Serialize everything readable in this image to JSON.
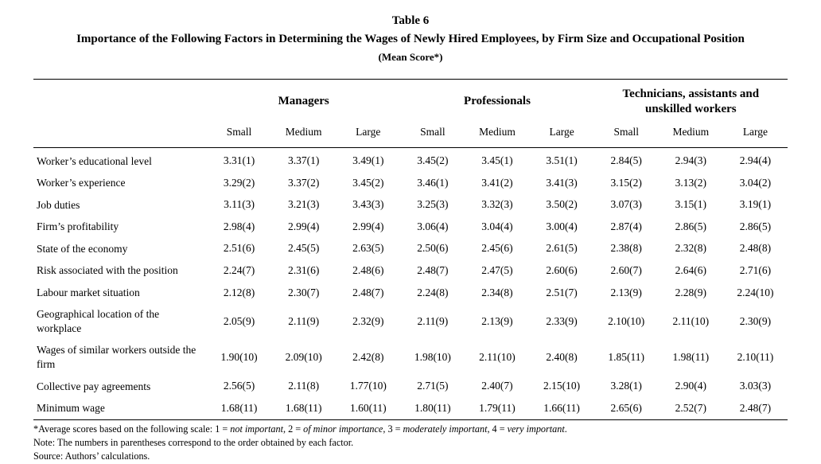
{
  "header": {
    "table_number": "Table 6",
    "title": "Importance of the Following Factors in Determining the Wages of Newly Hired Employees, by Firm Size and Occupational Position",
    "score_note": "(Mean Score*)"
  },
  "table": {
    "group_headers": [
      "Managers",
      "Professionals",
      "Technicians, assistants and unskilled workers"
    ],
    "size_headers": [
      "Small",
      "Medium",
      "Large",
      "Small",
      "Medium",
      "Large",
      "Small",
      "Medium",
      "Large"
    ],
    "rows": [
      {
        "label": "Worker’s educational level",
        "values": [
          "3.31(1)",
          "3.37(1)",
          "3.49(1)",
          "3.45(2)",
          "3.45(1)",
          "3.51(1)",
          "2.84(5)",
          "2.94(3)",
          "2.94(4)"
        ]
      },
      {
        "label": "Worker’s experience",
        "values": [
          "3.29(2)",
          "3.37(2)",
          "3.45(2)",
          "3.46(1)",
          "3.41(2)",
          "3.41(3)",
          "3.15(2)",
          "3.13(2)",
          "3.04(2)"
        ]
      },
      {
        "label": "Job duties",
        "values": [
          "3.11(3)",
          "3.21(3)",
          "3.43(3)",
          "3.25(3)",
          "3.32(3)",
          "3.50(2)",
          "3.07(3)",
          "3.15(1)",
          "3.19(1)"
        ]
      },
      {
        "label": "Firm’s profitability",
        "values": [
          "2.98(4)",
          "2.99(4)",
          "2.99(4)",
          "3.06(4)",
          "3.04(4)",
          "3.00(4)",
          "2.87(4)",
          "2.86(5)",
          "2.86(5)"
        ]
      },
      {
        "label": "State of the economy",
        "values": [
          "2.51(6)",
          "2.45(5)",
          "2.63(5)",
          "2.50(6)",
          "2.45(6)",
          "2.61(5)",
          "2.38(8)",
          "2.32(8)",
          "2.48(8)"
        ]
      },
      {
        "label": "Risk associated with the position",
        "values": [
          "2.24(7)",
          "2.31(6)",
          "2.48(6)",
          "2.48(7)",
          "2.47(5)",
          "2.60(6)",
          "2.60(7)",
          "2.64(6)",
          "2.71(6)"
        ]
      },
      {
        "label": "Labour market situation",
        "values": [
          "2.12(8)",
          "2.30(7)",
          "2.48(7)",
          "2.24(8)",
          "2.34(8)",
          "2.51(7)",
          "2.13(9)",
          "2.28(9)",
          "2.24(10)"
        ]
      },
      {
        "label": "Geographical location of the workplace",
        "values": [
          "2.05(9)",
          "2.11(9)",
          "2.32(9)",
          "2.11(9)",
          "2.13(9)",
          "2.33(9)",
          "2.10(10)",
          "2.11(10)",
          "2.30(9)"
        ]
      },
      {
        "label": "Wages of similar workers outside the firm",
        "values": [
          "1.90(10)",
          "2.09(10)",
          "2.42(8)",
          "1.98(10)",
          "2.11(10)",
          "2.40(8)",
          "1.85(11)",
          "1.98(11)",
          "2.10(11)"
        ]
      },
      {
        "label": "Collective pay agreements",
        "values": [
          "2.56(5)",
          "2.11(8)",
          "1.77(10)",
          "2.71(5)",
          "2.40(7)",
          "2.15(10)",
          "3.28(1)",
          "2.90(4)",
          "3.03(3)"
        ]
      },
      {
        "label": "Minimum wage",
        "values": [
          "1.68(11)",
          "1.68(11)",
          "1.60(11)",
          "1.80(11)",
          "1.79(11)",
          "1.66(11)",
          "2.65(6)",
          "2.52(7)",
          "2.48(7)"
        ]
      }
    ]
  },
  "footnotes": {
    "scale_parts": [
      {
        "text": "*Average scores based on the following scale: 1 = ",
        "italic": false
      },
      {
        "text": "not important",
        "italic": true
      },
      {
        "text": ", 2 = ",
        "italic": false
      },
      {
        "text": "of minor importance",
        "italic": true
      },
      {
        "text": ", 3 = ",
        "italic": false
      },
      {
        "text": "moderately important",
        "italic": true
      },
      {
        "text": ", 4 = ",
        "italic": false
      },
      {
        "text": "very important",
        "italic": true
      },
      {
        "text": ".",
        "italic": false
      }
    ],
    "note": "Note: The numbers in parentheses correspond to the order obtained by each factor.",
    "source": "Source: Authors’ calculations."
  }
}
